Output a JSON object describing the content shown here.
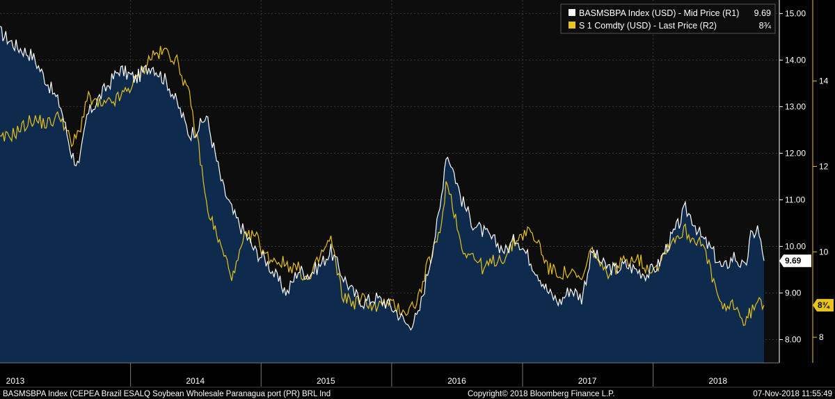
{
  "chart_data": {
    "type": "line",
    "x_range": [
      "2013-01-01",
      "2018-11-07"
    ],
    "x_tick_labels": [
      "2013",
      "2014",
      "2015",
      "2016",
      "2017",
      "2018"
    ],
    "y_axis_right_1": {
      "ylim": [
        7.5,
        15.2
      ],
      "ticks": [
        "8.00",
        "9.00",
        "10.00",
        "11.00",
        "12.00",
        "13.00",
        "14.00",
        "15.00"
      ]
    },
    "y_axis_right_2": {
      "ylim": [
        7.4,
        15.8
      ],
      "ticks": [
        "8",
        "10",
        "12",
        "14"
      ]
    },
    "grid": true,
    "legend_position": "top-right",
    "series": [
      {
        "name": "BASMSBPA Index (USD) - Mid Price (R1)",
        "last_value_label": "9.69",
        "color": "#ffffff",
        "fill_color": "#0e2a4c",
        "axis": "R1",
        "points": [
          [
            "2013-01-01",
            14.6
          ],
          [
            "2013-02-15",
            14.3
          ],
          [
            "2013-04-01",
            14.1
          ],
          [
            "2013-05-15",
            13.5
          ],
          [
            "2013-06-20",
            13.0
          ],
          [
            "2013-07-20",
            12.0
          ],
          [
            "2013-08-10",
            11.7
          ],
          [
            "2013-09-01",
            12.8
          ],
          [
            "2013-10-15",
            13.3
          ],
          [
            "2013-12-01",
            13.8
          ],
          [
            "2014-01-15",
            13.6
          ],
          [
            "2014-03-01",
            13.9
          ],
          [
            "2014-04-15",
            13.5
          ],
          [
            "2014-05-15",
            13.0
          ],
          [
            "2014-06-15",
            12.4
          ],
          [
            "2014-07-15",
            12.6
          ],
          [
            "2014-08-01",
            12.8
          ],
          [
            "2014-09-15",
            11.3
          ],
          [
            "2014-10-15",
            10.7
          ],
          [
            "2014-11-15",
            10.3
          ],
          [
            "2014-12-15",
            9.9
          ],
          [
            "2015-01-15",
            9.7
          ],
          [
            "2015-02-15",
            9.3
          ],
          [
            "2015-03-15",
            9.0
          ],
          [
            "2015-04-15",
            9.5
          ],
          [
            "2015-05-15",
            9.4
          ],
          [
            "2015-06-15",
            9.6
          ],
          [
            "2015-07-15",
            9.9
          ],
          [
            "2015-08-15",
            9.4
          ],
          [
            "2015-09-15",
            9.0
          ],
          [
            "2015-10-15",
            8.8
          ],
          [
            "2015-11-15",
            8.9
          ],
          [
            "2015-12-15",
            8.8
          ],
          [
            "2016-01-15",
            8.6
          ],
          [
            "2016-02-15",
            8.3
          ],
          [
            "2016-03-15",
            8.5
          ],
          [
            "2016-04-15",
            9.6
          ],
          [
            "2016-05-15",
            10.8
          ],
          [
            "2016-06-01",
            12.0
          ],
          [
            "2016-06-15",
            11.8
          ],
          [
            "2016-07-15",
            11.0
          ],
          [
            "2016-08-15",
            10.5
          ],
          [
            "2016-09-15",
            10.3
          ],
          [
            "2016-10-15",
            10.1
          ],
          [
            "2016-11-15",
            9.9
          ],
          [
            "2016-12-15",
            10.2
          ],
          [
            "2017-01-15",
            9.8
          ],
          [
            "2017-02-15",
            9.4
          ],
          [
            "2017-03-15",
            9.0
          ],
          [
            "2017-04-15",
            8.8
          ],
          [
            "2017-05-15",
            9.1
          ],
          [
            "2017-06-15",
            8.9
          ],
          [
            "2017-07-15",
            9.9
          ],
          [
            "2017-08-15",
            9.6
          ],
          [
            "2017-09-15",
            9.5
          ],
          [
            "2017-10-15",
            9.6
          ],
          [
            "2017-11-15",
            9.5
          ],
          [
            "2017-12-15",
            9.4
          ],
          [
            "2018-01-15",
            9.6
          ],
          [
            "2018-02-15",
            10.1
          ],
          [
            "2018-03-15",
            10.5
          ],
          [
            "2018-04-01",
            10.8
          ],
          [
            "2018-04-20",
            10.6
          ],
          [
            "2018-05-15",
            10.2
          ],
          [
            "2018-06-15",
            9.9
          ],
          [
            "2018-07-15",
            9.5
          ],
          [
            "2018-08-15",
            9.8
          ],
          [
            "2018-09-15",
            9.5
          ],
          [
            "2018-10-01",
            10.2
          ],
          [
            "2018-10-20",
            10.4
          ],
          [
            "2018-11-07",
            9.69
          ]
        ]
      },
      {
        "name": "S 1 Comdty (USD) - Last Price (R2)",
        "last_value_label": "8¾",
        "color": "#e8c41c",
        "axis": "R2",
        "points": [
          [
            "2013-01-01",
            12.6
          ],
          [
            "2013-02-15",
            12.8
          ],
          [
            "2013-04-01",
            13.1
          ],
          [
            "2013-05-15",
            13.0
          ],
          [
            "2013-06-20",
            13.2
          ],
          [
            "2013-07-20",
            12.5
          ],
          [
            "2013-08-10",
            12.8
          ],
          [
            "2013-09-01",
            13.6
          ],
          [
            "2013-10-15",
            13.4
          ],
          [
            "2013-12-01",
            13.6
          ],
          [
            "2014-01-15",
            14.0
          ],
          [
            "2014-03-01",
            14.6
          ],
          [
            "2014-04-15",
            14.7
          ],
          [
            "2014-05-15",
            14.4
          ],
          [
            "2014-06-15",
            13.6
          ],
          [
            "2014-07-15",
            12.2
          ],
          [
            "2014-08-01",
            11.1
          ],
          [
            "2014-09-15",
            10.0
          ],
          [
            "2014-10-15",
            9.4
          ],
          [
            "2014-11-15",
            10.3
          ],
          [
            "2014-12-15",
            10.4
          ],
          [
            "2015-01-15",
            9.9
          ],
          [
            "2015-02-15",
            9.8
          ],
          [
            "2015-03-15",
            9.7
          ],
          [
            "2015-04-15",
            9.6
          ],
          [
            "2015-05-15",
            9.3
          ],
          [
            "2015-06-15",
            9.9
          ],
          [
            "2015-07-15",
            10.3
          ],
          [
            "2015-08-15",
            9.0
          ],
          [
            "2015-09-15",
            8.8
          ],
          [
            "2015-10-15",
            8.9
          ],
          [
            "2015-11-15",
            8.7
          ],
          [
            "2015-12-15",
            8.8
          ],
          [
            "2016-01-15",
            8.7
          ],
          [
            "2016-02-15",
            8.6
          ],
          [
            "2016-03-15",
            8.9
          ],
          [
            "2016-04-15",
            9.8
          ],
          [
            "2016-05-15",
            10.4
          ],
          [
            "2016-06-01",
            11.6
          ],
          [
            "2016-06-15",
            11.3
          ],
          [
            "2016-07-15",
            10.1
          ],
          [
            "2016-08-15",
            9.9
          ],
          [
            "2016-09-15",
            9.6
          ],
          [
            "2016-10-15",
            9.8
          ],
          [
            "2016-11-15",
            9.9
          ],
          [
            "2016-12-15",
            10.3
          ],
          [
            "2017-01-15",
            10.5
          ],
          [
            "2017-02-15",
            10.2
          ],
          [
            "2017-03-15",
            9.6
          ],
          [
            "2017-04-15",
            9.5
          ],
          [
            "2017-05-15",
            9.5
          ],
          [
            "2017-06-15",
            9.3
          ],
          [
            "2017-07-15",
            10.1
          ],
          [
            "2017-08-15",
            9.5
          ],
          [
            "2017-09-15",
            9.6
          ],
          [
            "2017-10-15",
            9.8
          ],
          [
            "2017-11-15",
            9.9
          ],
          [
            "2017-12-15",
            9.6
          ],
          [
            "2018-01-15",
            9.7
          ],
          [
            "2018-02-15",
            10.2
          ],
          [
            "2018-03-15",
            10.4
          ],
          [
            "2018-04-01",
            10.5
          ],
          [
            "2018-04-20",
            10.3
          ],
          [
            "2018-05-15",
            10.3
          ],
          [
            "2018-06-15",
            9.4
          ],
          [
            "2018-07-15",
            8.6
          ],
          [
            "2018-08-15",
            8.8
          ],
          [
            "2018-09-15",
            8.3
          ],
          [
            "2018-10-01",
            8.6
          ],
          [
            "2018-10-20",
            8.8
          ],
          [
            "2018-11-07",
            8.75
          ]
        ]
      }
    ]
  },
  "footer": {
    "description": "BASMSBPA Index (CEPEA Brazil ESALQ Soybean Wholesale Paranagua port (PR) BRL Ind",
    "copyright": "Copyright© 2018 Bloomberg Finance L.P.",
    "timestamp": "07-Nov-2018 11:55:49"
  }
}
